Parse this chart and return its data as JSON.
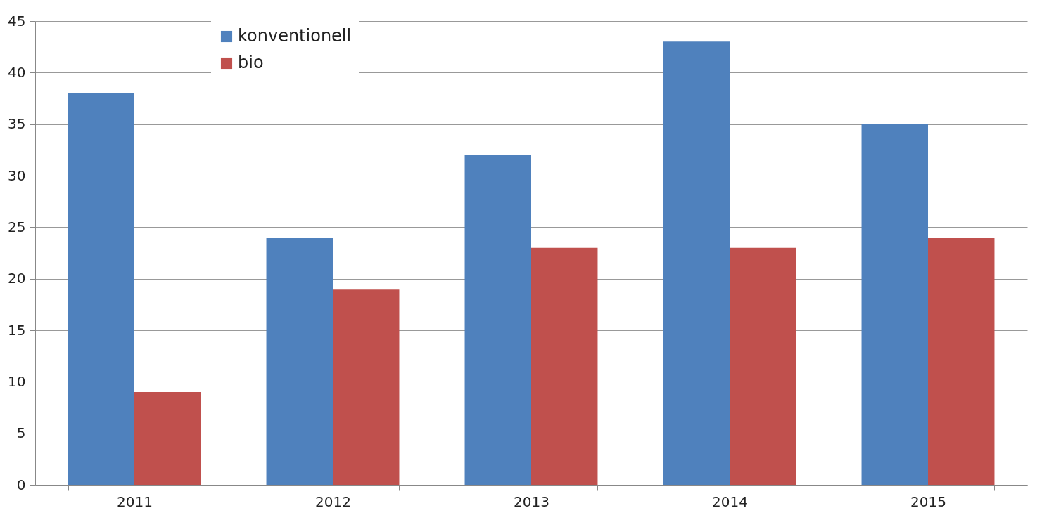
{
  "chart_data": {
    "type": "bar",
    "categories": [
      "2011",
      "2012",
      "2013",
      "2014",
      "2015"
    ],
    "series": [
      {
        "name": "konventionell",
        "color": "#4f81bd",
        "values": [
          38,
          24,
          32,
          43,
          35
        ]
      },
      {
        "name": "bio",
        "color": "#c0504d",
        "values": [
          9,
          19,
          23,
          23,
          24
        ]
      }
    ],
    "ylim": [
      0,
      45
    ],
    "yticks": [
      0,
      5,
      10,
      15,
      20,
      25,
      30,
      35,
      40,
      45
    ],
    "grid": "y",
    "legend": "top left"
  }
}
